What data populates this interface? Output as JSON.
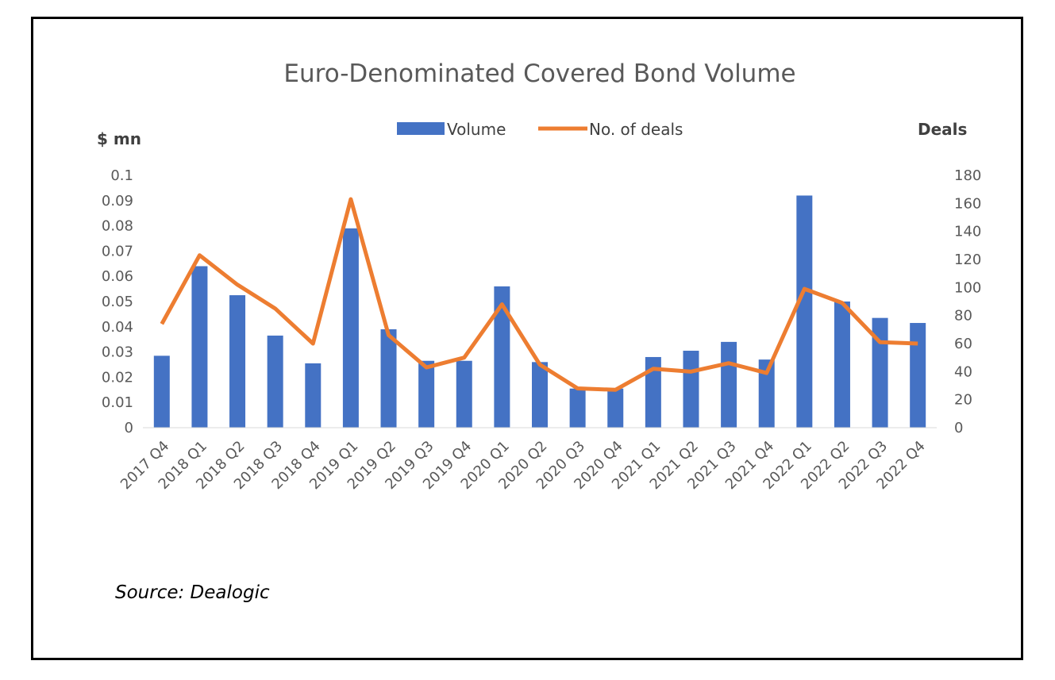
{
  "source": "Source: Dealogic",
  "chart_data": {
    "type": "bar",
    "title": "Euro-Denominated Covered Bond Volume",
    "ylabel_left": "$ mn",
    "ylabel_right": "Deals",
    "categories": [
      "2017 Q4",
      "2018 Q1",
      "2018 Q2",
      "2018 Q3",
      "2018 Q4",
      "2019 Q1",
      "2019 Q2",
      "2019 Q3",
      "2019 Q4",
      "2020 Q1",
      "2020 Q2",
      "2020 Q3",
      "2020 Q4",
      "2021 Q1",
      "2021 Q2",
      "2021 Q3",
      "2021 Q4",
      "2022 Q1",
      "2022 Q2",
      "2022 Q3",
      "2022 Q4"
    ],
    "ylim_left": [
      0,
      0.1
    ],
    "yticks_left": [
      "0",
      "0.01",
      "0.02",
      "0.03",
      "0.04",
      "0.05",
      "0.06",
      "0.07",
      "0.08",
      "0.09",
      "0.1"
    ],
    "ylim_right": [
      0,
      180
    ],
    "yticks_right": [
      "0",
      "20",
      "40",
      "60",
      "80",
      "100",
      "120",
      "140",
      "160",
      "180"
    ],
    "legend_position": "top",
    "series": [
      {
        "name": "Volume",
        "type": "bar",
        "axis": "left",
        "color": "#4472C4",
        "values": [
          0.0285,
          0.064,
          0.0525,
          0.0365,
          0.0255,
          0.079,
          0.039,
          0.0265,
          0.0265,
          0.056,
          0.026,
          0.0155,
          0.0155,
          0.028,
          0.0305,
          0.034,
          0.027,
          0.092,
          0.05,
          0.0435,
          0.0415
        ]
      },
      {
        "name": "No. of deals",
        "type": "line",
        "axis": "right",
        "color": "#ED7D31",
        "values": [
          74,
          123,
          102,
          85,
          60,
          163,
          66,
          43,
          50,
          88,
          45,
          28,
          27,
          42,
          40,
          46,
          39,
          99,
          89,
          61,
          60
        ]
      }
    ]
  }
}
